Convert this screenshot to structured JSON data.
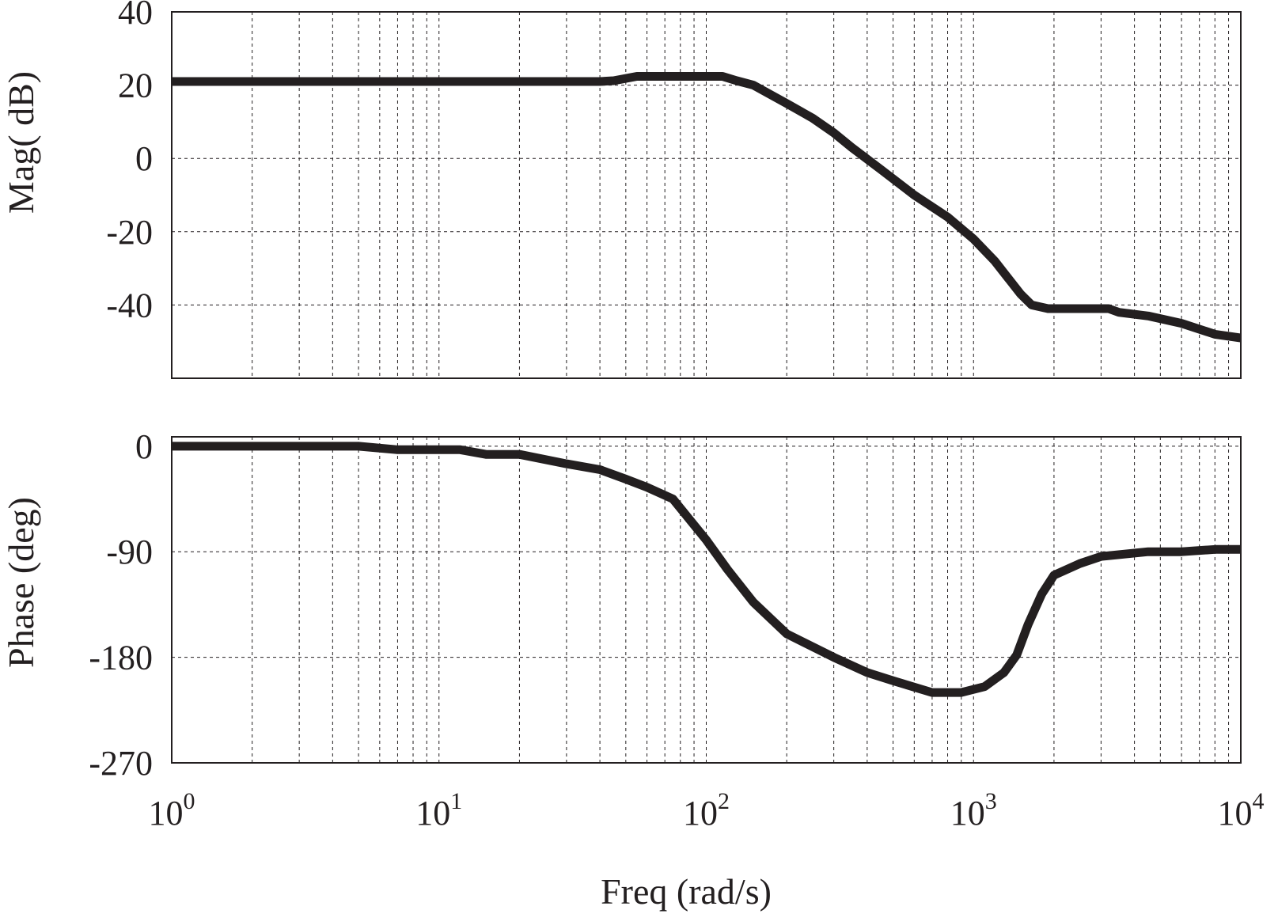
{
  "chart_data": [
    {
      "type": "line",
      "title": "",
      "ylabel": "Mag( dB)",
      "xlabel": "",
      "xscale": "log",
      "xlim": [
        1,
        10000
      ],
      "ylim": [
        -60,
        40
      ],
      "yticks": [
        "40",
        "20",
        "0",
        "-20",
        "-40"
      ],
      "grid": true,
      "series": [
        {
          "color": "#231f20",
          "x": [
            1,
            10,
            20,
            40,
            45,
            55,
            70,
            100,
            115,
            130,
            150,
            200,
            250,
            300,
            350,
            450,
            600,
            800,
            1000,
            1200,
            1500,
            1650,
            1900,
            2500,
            3200,
            3500,
            4500,
            6000,
            8000,
            10000
          ],
          "y": [
            21,
            21,
            21,
            21,
            21.2,
            22.4,
            22.4,
            22.4,
            22.4,
            21.2,
            20,
            15,
            11,
            7,
            3,
            -3,
            -10,
            -16,
            -22,
            -28,
            -37,
            -40,
            -41,
            -41,
            -41,
            -42,
            -43,
            -45,
            -48,
            -49
          ]
        }
      ]
    },
    {
      "type": "line",
      "title": "",
      "ylabel": "Phase (deg)",
      "xlabel": "Freq (rad/s)",
      "xscale": "log",
      "xlim": [
        1,
        10000
      ],
      "ylim": [
        -270,
        8
      ],
      "yticks": [
        "0",
        "-90",
        "-180",
        "-270"
      ],
      "grid": true,
      "series": [
        {
          "color": "#231f20",
          "x": [
            1,
            5,
            7,
            10,
            12,
            15,
            20,
            30,
            40,
            50,
            60,
            75,
            100,
            120,
            150,
            200,
            300,
            400,
            500,
            700,
            900,
            1100,
            1300,
            1450,
            1600,
            1800,
            2000,
            2500,
            3000,
            4500,
            6000,
            8000,
            10000
          ],
          "y": [
            0,
            0,
            -3,
            -3,
            -3,
            -7,
            -7,
            -15,
            -20,
            -28,
            -35,
            -45,
            -80,
            -105,
            -133,
            -160,
            -180,
            -193,
            -200,
            -210,
            -210,
            -205,
            -193,
            -178,
            -152,
            -126,
            -110,
            -100,
            -94,
            -90,
            -90,
            -88,
            -88
          ]
        }
      ]
    }
  ],
  "x_axis": {
    "tick_labels": [
      {
        "base": "10",
        "exp": "0"
      },
      {
        "base": "10",
        "exp": "1"
      },
      {
        "base": "10",
        "exp": "2"
      },
      {
        "base": "10",
        "exp": "3"
      },
      {
        "base": "10",
        "exp": "4"
      }
    ]
  }
}
